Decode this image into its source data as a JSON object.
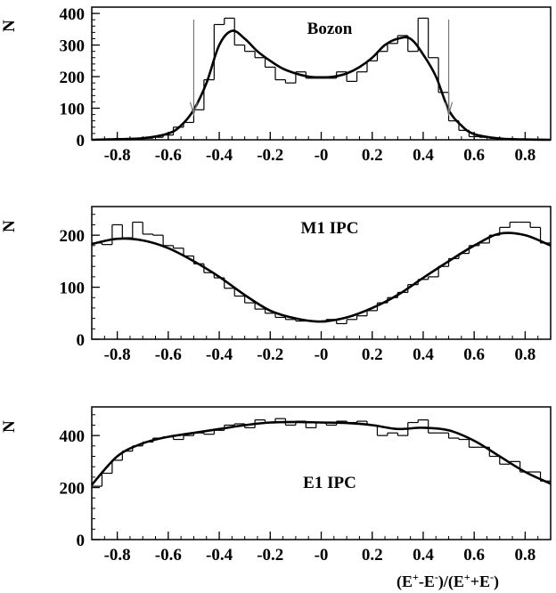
{
  "x_axis_label": {
    "p1": "(E",
    "s1": "+",
    "p2": "-E",
    "s2": "-",
    "p3": ")/(E",
    "s3": "+",
    "p4": "+E",
    "s4": "-",
    "p5": ")"
  },
  "chart_data": [
    {
      "type": "histogram",
      "title": "Bozon",
      "ylabel": "N",
      "xlim": [
        -0.9,
        0.9
      ],
      "ylim": [
        0,
        420
      ],
      "x_ticks": [
        -0.8,
        -0.6,
        -0.4,
        -0.2,
        0,
        0.2,
        0.4,
        0.6,
        0.8
      ],
      "x_tick_labels": [
        "-0.8",
        "-0.6",
        "-0.4",
        "-0.2",
        "-0",
        "0.2",
        "0.4",
        "0.6",
        "0.8"
      ],
      "y_ticks": [
        0,
        100,
        200,
        300,
        400
      ],
      "y_tick_labels": [
        "0",
        "100",
        "200",
        "300",
        "400"
      ],
      "bin_edges": [
        -0.9,
        -0.86,
        -0.82,
        -0.78,
        -0.74,
        -0.7,
        -0.66,
        -0.62,
        -0.58,
        -0.54,
        -0.5,
        -0.46,
        -0.42,
        -0.38,
        -0.34,
        -0.3,
        -0.26,
        -0.22,
        -0.18,
        -0.14,
        -0.1,
        -0.06,
        -0.02,
        0.02,
        0.06,
        0.1,
        0.14,
        0.18,
        0.22,
        0.26,
        0.3,
        0.34,
        0.38,
        0.42,
        0.46,
        0.5,
        0.54,
        0.58,
        0.62,
        0.66,
        0.7,
        0.74,
        0.78,
        0.82,
        0.86,
        0.9
      ],
      "counts": [
        0,
        0,
        0,
        0,
        2,
        5,
        8,
        15,
        40,
        55,
        95,
        190,
        365,
        385,
        300,
        280,
        260,
        230,
        190,
        180,
        215,
        195,
        195,
        195,
        215,
        185,
        215,
        250,
        280,
        305,
        330,
        280,
        385,
        260,
        150,
        60,
        30,
        10,
        8,
        5,
        2,
        0,
        0,
        0,
        0
      ],
      "curve": {
        "x": [
          -0.9,
          -0.8,
          -0.7,
          -0.6,
          -0.55,
          -0.5,
          -0.45,
          -0.4,
          -0.35,
          -0.3,
          -0.25,
          -0.2,
          -0.15,
          -0.1,
          -0.05,
          0,
          0.05,
          0.1,
          0.15,
          0.2,
          0.25,
          0.3,
          0.35,
          0.4,
          0.45,
          0.5,
          0.55,
          0.6,
          0.7,
          0.8,
          0.9
        ],
        "y": [
          0,
          2,
          5,
          20,
          45,
          95,
          180,
          300,
          345,
          320,
          280,
          250,
          225,
          210,
          200,
          198,
          200,
          210,
          230,
          260,
          300,
          320,
          320,
          270,
          200,
          95,
          45,
          18,
          4,
          1,
          0
        ]
      },
      "arrows": [
        -0.5,
        0.5
      ]
    },
    {
      "type": "histogram",
      "title": "M1 IPC",
      "ylabel": "N",
      "xlim": [
        -0.9,
        0.9
      ],
      "ylim": [
        0,
        255
      ],
      "x_ticks": [
        -0.8,
        -0.6,
        -0.4,
        -0.2,
        0,
        0.2,
        0.4,
        0.6,
        0.8
      ],
      "x_tick_labels": [
        "-0.8",
        "-0.6",
        "-0.4",
        "-0.2",
        "-0",
        "0.2",
        "0.4",
        "0.6",
        "0.8"
      ],
      "y_ticks": [
        0,
        100,
        200
      ],
      "y_tick_labels": [
        "0",
        "100",
        "200"
      ],
      "bin_edges": [
        -0.9,
        -0.86,
        -0.82,
        -0.78,
        -0.74,
        -0.7,
        -0.66,
        -0.62,
        -0.58,
        -0.54,
        -0.5,
        -0.46,
        -0.42,
        -0.38,
        -0.34,
        -0.3,
        -0.26,
        -0.22,
        -0.18,
        -0.14,
        -0.1,
        -0.06,
        -0.02,
        0.02,
        0.06,
        0.1,
        0.14,
        0.18,
        0.22,
        0.26,
        0.3,
        0.34,
        0.38,
        0.42,
        0.46,
        0.5,
        0.54,
        0.58,
        0.62,
        0.66,
        0.7,
        0.74,
        0.78,
        0.82,
        0.86,
        0.9
      ],
      "counts": [
        185,
        182,
        220,
        195,
        225,
        202,
        200,
        180,
        175,
        160,
        145,
        128,
        118,
        98,
        83,
        70,
        58,
        50,
        42,
        38,
        35,
        35,
        33,
        38,
        30,
        38,
        45,
        55,
        70,
        80,
        90,
        105,
        115,
        120,
        140,
        155,
        165,
        180,
        185,
        200,
        215,
        225,
        225,
        215,
        185
      ],
      "curve": {
        "x": [
          -0.9,
          -0.8,
          -0.7,
          -0.6,
          -0.5,
          -0.4,
          -0.3,
          -0.2,
          -0.1,
          0,
          0.1,
          0.2,
          0.3,
          0.4,
          0.5,
          0.6,
          0.7,
          0.8,
          0.9
        ],
        "y": [
          183,
          193,
          190,
          175,
          150,
          120,
          85,
          55,
          40,
          34,
          42,
          60,
          85,
          118,
          150,
          180,
          203,
          200,
          180
        ]
      }
    },
    {
      "type": "histogram",
      "title": "E1 IPC",
      "ylabel": "N",
      "xlim": [
        -0.9,
        0.9
      ],
      "ylim": [
        0,
        510
      ],
      "x_ticks": [
        -0.8,
        -0.6,
        -0.4,
        -0.2,
        0,
        0.2,
        0.4,
        0.6,
        0.8
      ],
      "x_tick_labels": [
        "-0.8",
        "-0.6",
        "-0.4",
        "-0.2",
        "-0",
        "0.2",
        "0.4",
        "0.6",
        "0.8"
      ],
      "y_ticks": [
        0,
        200,
        400
      ],
      "y_tick_labels": [
        "0",
        "200",
        "400"
      ],
      "bin_edges": [
        -0.9,
        -0.86,
        -0.82,
        -0.78,
        -0.74,
        -0.7,
        -0.66,
        -0.62,
        -0.58,
        -0.54,
        -0.5,
        -0.46,
        -0.42,
        -0.38,
        -0.34,
        -0.3,
        -0.26,
        -0.22,
        -0.18,
        -0.14,
        -0.1,
        -0.06,
        -0.02,
        0.02,
        0.06,
        0.1,
        0.14,
        0.18,
        0.22,
        0.26,
        0.3,
        0.34,
        0.38,
        0.42,
        0.46,
        0.5,
        0.54,
        0.58,
        0.62,
        0.66,
        0.7,
        0.74,
        0.78,
        0.82,
        0.86,
        0.9
      ],
      "counts": [
        205,
        255,
        305,
        340,
        360,
        375,
        390,
        395,
        385,
        400,
        410,
        405,
        420,
        440,
        445,
        430,
        460,
        450,
        465,
        440,
        455,
        430,
        450,
        440,
        455,
        450,
        455,
        440,
        400,
        410,
        400,
        450,
        460,
        410,
        410,
        390,
        385,
        355,
        355,
        320,
        290,
        300,
        260,
        260,
        225
      ],
      "curve": {
        "x": [
          -0.9,
          -0.8,
          -0.7,
          -0.6,
          -0.5,
          -0.4,
          -0.3,
          -0.2,
          -0.1,
          0,
          0.1,
          0.2,
          0.3,
          0.4,
          0.5,
          0.6,
          0.7,
          0.8,
          0.9
        ],
        "y": [
          210,
          320,
          370,
          395,
          410,
          425,
          440,
          450,
          452,
          450,
          448,
          440,
          425,
          430,
          420,
          380,
          320,
          260,
          215
        ]
      }
    }
  ]
}
